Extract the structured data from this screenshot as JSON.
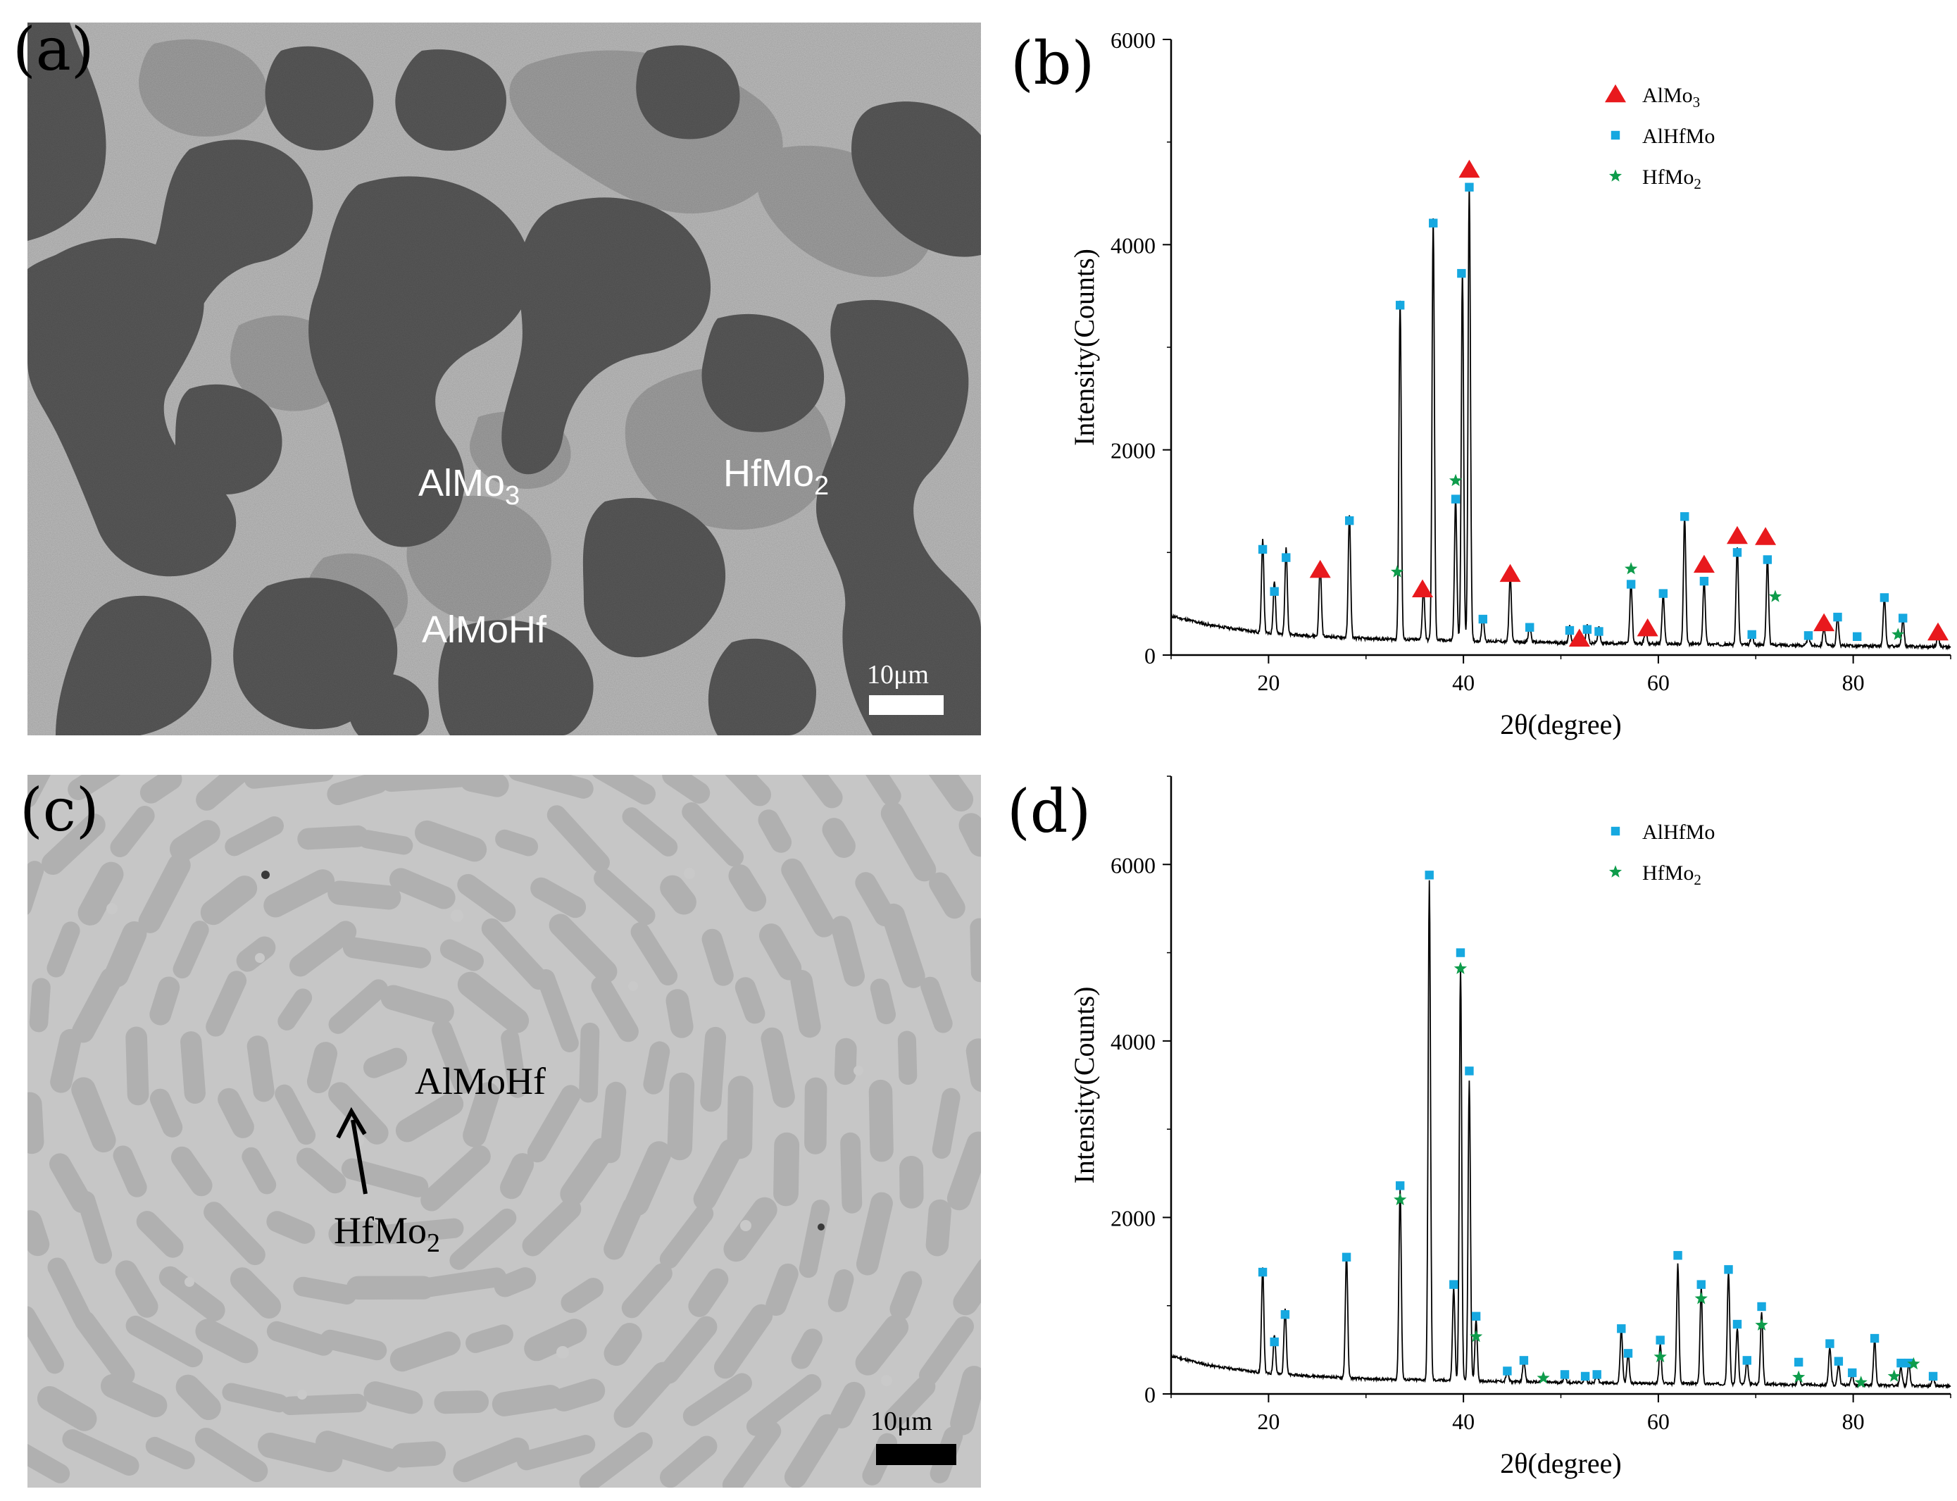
{
  "panels": {
    "a": {
      "label": "(a)",
      "phases": {
        "almo3": "AlMo",
        "almo3_sub": "3",
        "hfmo2": "HfMo",
        "hfmo2_sub": "2",
        "almohf": "AlMoHf"
      },
      "scale": "10μm"
    },
    "b": {
      "label": "(b)"
    },
    "c": {
      "label": "(c)",
      "phases": {
        "almohf": "AlMoHf",
        "hfmo2": "HfMo",
        "hfmo2_sub": "2"
      },
      "scale": "10μm"
    },
    "d": {
      "label": "(d)"
    }
  },
  "colors": {
    "almo3_marker": "#e8191d",
    "alhfmo_marker": "#16a8e0",
    "hfmo2_marker": "#0e9c4b",
    "pattern_line": "#000000"
  },
  "chart_data": [
    {
      "id": "b",
      "type": "line",
      "title": "",
      "xlabel": "2θ(degree)",
      "ylabel": "Intensity(Counts)",
      "xlim": [
        10,
        90
      ],
      "ylim": [
        0,
        6000
      ],
      "xticks": [
        20,
        40,
        60,
        80
      ],
      "yticks": [
        0,
        2000,
        4000,
        6000
      ],
      "legend": [
        {
          "name": "AlMo",
          "sub": "3",
          "marker": "triangle",
          "color": "#e8191d"
        },
        {
          "name": "AlHfMo",
          "sub": "",
          "marker": "square",
          "color": "#16a8e0"
        },
        {
          "name": "HfMo",
          "sub": "2",
          "marker": "star",
          "color": "#0e9c4b"
        }
      ],
      "background": [
        [
          10,
          380
        ],
        [
          14,
          290
        ],
        [
          20,
          210
        ],
        [
          30,
          160
        ],
        [
          40,
          140
        ],
        [
          50,
          120
        ],
        [
          60,
          110
        ],
        [
          70,
          100
        ],
        [
          80,
          90
        ],
        [
          90,
          80
        ]
      ],
      "peaks": [
        [
          19.4,
          900
        ],
        [
          20.6,
          520
        ],
        [
          21.8,
          850
        ],
        [
          25.3,
          700
        ],
        [
          28.3,
          1200
        ],
        [
          33.5,
          3300
        ],
        [
          35.9,
          500
        ],
        [
          36.9,
          4100
        ],
        [
          39.2,
          1400
        ],
        [
          39.9,
          3600
        ],
        [
          40.6,
          4450
        ],
        [
          42.0,
          250
        ],
        [
          44.8,
          650
        ],
        [
          46.8,
          170
        ],
        [
          50.9,
          160
        ],
        [
          52.7,
          170
        ],
        [
          53.9,
          150
        ],
        [
          57.2,
          600
        ],
        [
          58.7,
          150
        ],
        [
          60.5,
          480
        ],
        [
          62.7,
          1240
        ],
        [
          64.7,
          630
        ],
        [
          68.1,
          960
        ],
        [
          69.6,
          110
        ],
        [
          71.2,
          850
        ],
        [
          75.4,
          100
        ],
        [
          77.0,
          180
        ],
        [
          78.4,
          280
        ],
        [
          83.2,
          470
        ],
        [
          85.1,
          270
        ],
        [
          88.7,
          110
        ]
      ],
      "markers": {
        "AlMo3": [
          [
            25.3,
            830
          ],
          [
            35.8,
            640
          ],
          [
            40.6,
            4730
          ],
          [
            44.8,
            790
          ],
          [
            51.9,
            160
          ],
          [
            58.9,
            260
          ],
          [
            64.7,
            880
          ],
          [
            68.1,
            1160
          ],
          [
            71.0,
            1150
          ],
          [
            77.0,
            310
          ],
          [
            88.7,
            220
          ]
        ],
        "AlHfMo": [
          [
            19.4,
            1030
          ],
          [
            20.6,
            620
          ],
          [
            21.8,
            950
          ],
          [
            28.3,
            1310
          ],
          [
            33.5,
            3410
          ],
          [
            36.9,
            4210
          ],
          [
            39.2,
            1520
          ],
          [
            39.8,
            3720
          ],
          [
            40.6,
            4560
          ],
          [
            42.0,
            350
          ],
          [
            46.8,
            270
          ],
          [
            50.9,
            240
          ],
          [
            52.7,
            250
          ],
          [
            53.9,
            230
          ],
          [
            57.2,
            690
          ],
          [
            60.5,
            600
          ],
          [
            62.7,
            1350
          ],
          [
            64.7,
            720
          ],
          [
            68.1,
            1000
          ],
          [
            69.6,
            200
          ],
          [
            71.2,
            930
          ],
          [
            75.4,
            190
          ],
          [
            78.4,
            370
          ],
          [
            80.4,
            180
          ],
          [
            83.2,
            560
          ],
          [
            85.1,
            360
          ]
        ],
        "HfMo2": [
          [
            33.2,
            810
          ],
          [
            39.2,
            1700
          ],
          [
            57.2,
            840
          ],
          [
            72.0,
            570
          ],
          [
            84.6,
            200
          ]
        ]
      }
    },
    {
      "id": "d",
      "type": "line",
      "title": "",
      "xlabel": "2θ(degree)",
      "ylabel": "Intensity(Counts)",
      "xlim": [
        10,
        90
      ],
      "ylim": [
        0,
        7000
      ],
      "xticks": [
        20,
        40,
        60,
        80
      ],
      "yticks": [
        0,
        2000,
        4000,
        6000
      ],
      "legend": [
        {
          "name": "AlHfMo",
          "sub": "",
          "marker": "square",
          "color": "#16a8e0"
        },
        {
          "name": "HfMo",
          "sub": "2",
          "marker": "star",
          "color": "#0e9c4b"
        }
      ],
      "background": [
        [
          10,
          430
        ],
        [
          14,
          320
        ],
        [
          20,
          230
        ],
        [
          30,
          170
        ],
        [
          40,
          150
        ],
        [
          50,
          130
        ],
        [
          60,
          120
        ],
        [
          70,
          110
        ],
        [
          80,
          100
        ],
        [
          90,
          90
        ]
      ],
      "peaks": [
        [
          19.4,
          1180
        ],
        [
          20.6,
          450
        ],
        [
          21.7,
          760
        ],
        [
          28.0,
          1400
        ],
        [
          33.5,
          2150
        ],
        [
          36.5,
          5650
        ],
        [
          39.0,
          1050
        ],
        [
          39.7,
          4700
        ],
        [
          40.6,
          3400
        ],
        [
          41.3,
          700
        ],
        [
          44.5,
          120
        ],
        [
          46.2,
          260
        ],
        [
          48.2,
          80
        ],
        [
          50.4,
          90
        ],
        [
          52.5,
          80
        ],
        [
          53.7,
          90
        ],
        [
          56.2,
          600
        ],
        [
          56.9,
          330
        ],
        [
          60.2,
          450
        ],
        [
          62.0,
          1350
        ],
        [
          64.4,
          1090
        ],
        [
          67.2,
          1280
        ],
        [
          68.1,
          640
        ],
        [
          69.1,
          260
        ],
        [
          70.6,
          820
        ],
        [
          74.4,
          120
        ],
        [
          77.6,
          420
        ],
        [
          78.5,
          240
        ],
        [
          79.9,
          120
        ],
        [
          82.2,
          510
        ],
        [
          84.9,
          210
        ],
        [
          85.7,
          250
        ],
        [
          88.2,
          100
        ]
      ],
      "markers": {
        "AlHfMo": [
          [
            19.4,
            1380
          ],
          [
            20.6,
            590
          ],
          [
            21.7,
            900
          ],
          [
            28.0,
            1550
          ],
          [
            33.5,
            2360
          ],
          [
            36.5,
            5880
          ],
          [
            39.0,
            1240
          ],
          [
            39.7,
            5000
          ],
          [
            40.6,
            3660
          ],
          [
            41.3,
            880
          ],
          [
            44.5,
            260
          ],
          [
            46.2,
            380
          ],
          [
            50.4,
            220
          ],
          [
            52.5,
            200
          ],
          [
            53.7,
            220
          ],
          [
            56.2,
            740
          ],
          [
            56.9,
            460
          ],
          [
            60.2,
            610
          ],
          [
            62.0,
            1570
          ],
          [
            64.4,
            1240
          ],
          [
            67.2,
            1410
          ],
          [
            68.1,
            790
          ],
          [
            69.1,
            380
          ],
          [
            70.6,
            990
          ],
          [
            74.4,
            360
          ],
          [
            77.6,
            570
          ],
          [
            78.5,
            370
          ],
          [
            79.9,
            240
          ],
          [
            82.2,
            630
          ],
          [
            84.9,
            350
          ],
          [
            85.7,
            350
          ],
          [
            88.2,
            200
          ]
        ],
        "HfMo2": [
          [
            33.5,
            2200
          ],
          [
            39.7,
            4820
          ],
          [
            41.3,
            650
          ],
          [
            48.2,
            180
          ],
          [
            60.2,
            420
          ],
          [
            64.4,
            1080
          ],
          [
            70.6,
            780
          ],
          [
            74.4,
            190
          ],
          [
            80.8,
            130
          ],
          [
            84.2,
            200
          ],
          [
            86.2,
            340
          ]
        ]
      }
    }
  ]
}
